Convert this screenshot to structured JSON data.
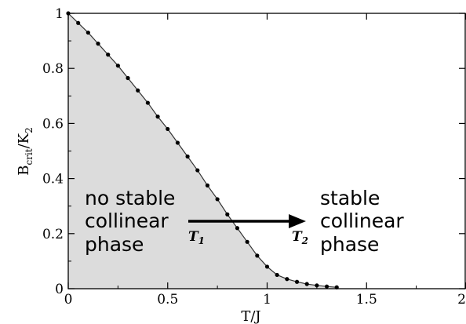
{
  "chart_data": {
    "type": "line",
    "xlabel": "T/J",
    "ylabel_main": "B",
    "ylabel_sub1": "crit",
    "ylabel_mid": "/K",
    "ylabel_sub2": "2",
    "xlim": [
      0,
      2
    ],
    "ylim": [
      0,
      1
    ],
    "xticks": [
      "0",
      "0.5",
      "1",
      "1.5",
      "2"
    ],
    "yticks": [
      "0",
      "0.2",
      "0.4",
      "0.6",
      "0.8",
      "1"
    ],
    "grid": false,
    "shaded_region_color": "#dcdcdc",
    "series": [
      {
        "x": [
          0.0,
          0.05,
          0.1,
          0.15,
          0.2,
          0.25,
          0.3,
          0.35,
          0.4,
          0.45,
          0.5,
          0.55,
          0.6,
          0.65,
          0.7,
          0.75,
          0.8,
          0.85,
          0.9,
          0.95,
          1.0,
          1.05,
          1.1,
          1.15,
          1.2,
          1.25,
          1.3,
          1.35
        ],
        "y": [
          1.0,
          0.965,
          0.93,
          0.89,
          0.85,
          0.81,
          0.765,
          0.72,
          0.675,
          0.625,
          0.58,
          0.53,
          0.48,
          0.43,
          0.375,
          0.325,
          0.27,
          0.22,
          0.17,
          0.12,
          0.08,
          0.05,
          0.035,
          0.025,
          0.017,
          0.012,
          0.008,
          0.005
        ]
      }
    ],
    "annotations": {
      "left_line1": "no stable",
      "left_line2": "collinear",
      "left_line3": "phase",
      "right_line1": "stable",
      "right_line2": "collinear",
      "right_line3": "phase",
      "t1_main": "T",
      "t1_sub": "1",
      "t2_main": "T",
      "t2_sub": "2"
    }
  }
}
